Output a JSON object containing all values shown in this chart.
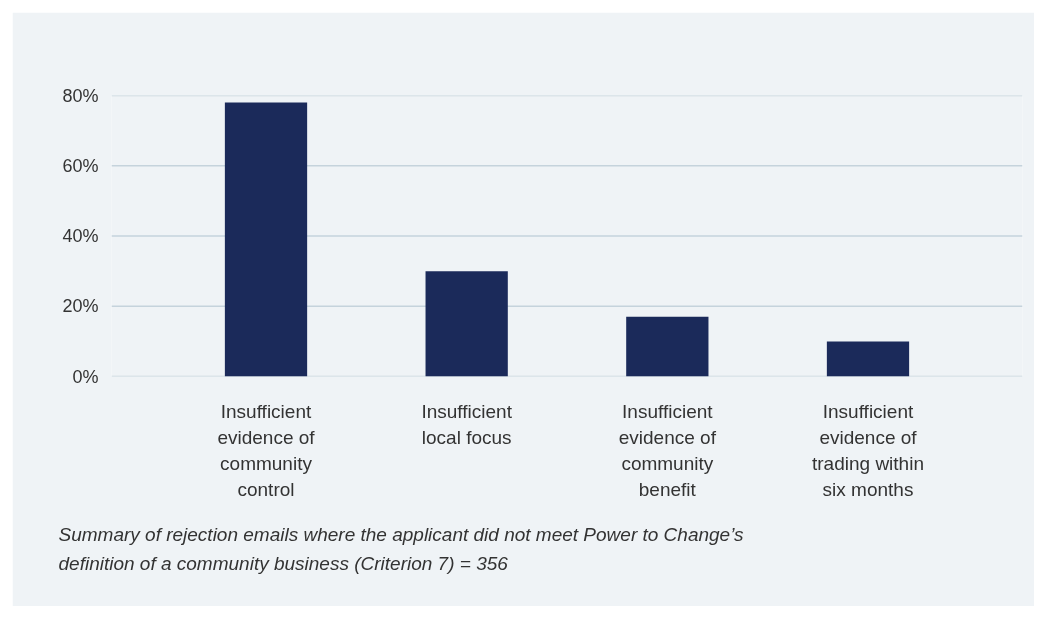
{
  "chart_data": {
    "type": "bar",
    "categories": [
      "Insufficient evidence of community control",
      "Insufficient local focus",
      "Insufficient evidence of community benefit",
      "Insufficient evidence of trading within six months"
    ],
    "values": [
      78,
      30,
      17,
      10
    ],
    "color": "#1b2a5a",
    "ylim": [
      0,
      80
    ],
    "yticks": [
      {
        "value": 0,
        "label": "0%"
      },
      {
        "value": 20,
        "label": "20%"
      },
      {
        "value": 40,
        "label": "40%"
      },
      {
        "value": 60,
        "label": "60%"
      },
      {
        "value": 80,
        "label": "80%"
      }
    ],
    "grid": "y",
    "annotations": [
      "Summary of rejection emails where the applicant did not meet Power to Change’s definition of a community business (Criterion 7) = 356"
    ]
  }
}
